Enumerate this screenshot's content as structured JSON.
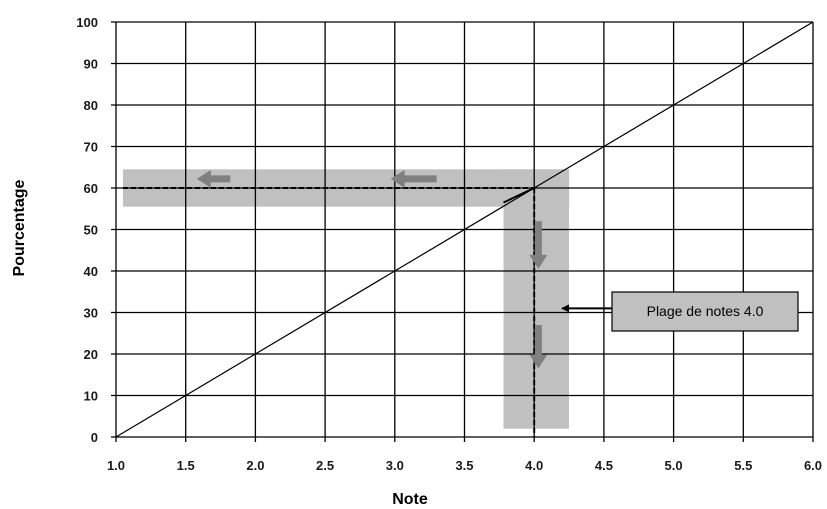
{
  "chart_data": {
    "type": "line",
    "title": "",
    "xlabel": "Note",
    "ylabel": "Pourcentage",
    "xlim": [
      1.0,
      6.0
    ],
    "ylim": [
      0,
      100
    ],
    "x_ticks": [
      "1.0",
      "1.5",
      "2.0",
      "2.5",
      "3.0",
      "3.5",
      "4.0",
      "4.5",
      "5.0",
      "5.5",
      "6.0"
    ],
    "y_ticks": [
      "0",
      "10",
      "20",
      "30",
      "40",
      "50",
      "60",
      "70",
      "80",
      "90",
      "100"
    ],
    "grid": true,
    "series": [
      {
        "x": [
          1.0,
          6.0
        ],
        "y": [
          0,
          100
        ]
      }
    ],
    "reference": {
      "x": 4.0,
      "y": 60
    },
    "bands": {
      "horizontal": {
        "x": [
          1.05,
          4.25
        ],
        "y": [
          55.5,
          64.5
        ]
      },
      "vertical": {
        "x": [
          3.78,
          4.25
        ],
        "y": [
          2,
          64.5
        ]
      }
    },
    "annotation": {
      "text": "Plage de notes 4.0",
      "points_to": [
        4.2,
        31
      ]
    },
    "colors": {
      "band": "#c0c0c0",
      "arrow": "#808080",
      "line": "#000000"
    }
  }
}
